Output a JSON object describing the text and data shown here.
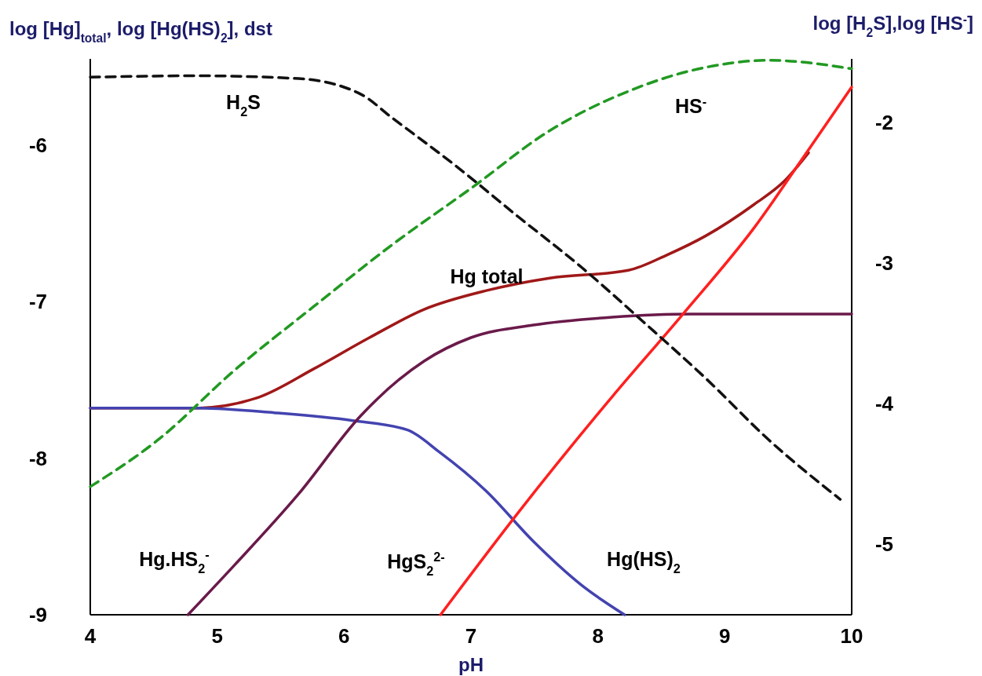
{
  "chart_data": {
    "type": "line",
    "xlabel": "pH",
    "ylabel": "log [Hg]$_{total}$, log [Hg(HS)$_{2}$], dst",
    "y2label": "log [H$_{2}$S],log [HS$^{-}$]",
    "xlim": [
      4,
      10
    ],
    "xticks": [
      4,
      5,
      6,
      7,
      8,
      9,
      10
    ],
    "ylim": [
      -9,
      -5.45
    ],
    "yticks": [
      -6,
      -7,
      -8,
      -9
    ],
    "y2lim": [
      -5.5,
      -1.55
    ],
    "y2ticks": [
      -2,
      -3,
      -4,
      -5
    ],
    "grid": false,
    "series": [
      {
        "name": "Hg total",
        "color": "#a01818",
        "x": [
          4,
          4.83,
          5.33,
          5.76,
          6.2,
          6.63,
          7.12,
          7.62,
          8.24,
          8.55,
          8.85,
          9.23,
          9.47,
          9.66
        ],
        "values": [
          -7.68,
          -7.68,
          -7.61,
          -7.43,
          -7.23,
          -7.05,
          -6.93,
          -6.85,
          -6.8,
          -6.7,
          -6.58,
          -6.38,
          -6.23,
          -6.05
        ]
      },
      {
        "name": "Hg(HS)$_{2}$",
        "color": "#4343b0",
        "x": [
          4,
          4.83,
          5.45,
          6.07,
          6.5,
          6.75,
          7.12,
          7.49,
          7.87,
          8.21
        ],
        "values": [
          -7.68,
          -7.68,
          -7.71,
          -7.76,
          -7.82,
          -7.96,
          -8.21,
          -8.53,
          -8.81,
          -9
        ]
      },
      {
        "name": "Hg.HS$_{2}$$^{-}$",
        "color": "#6a1a4a",
        "x": [
          4.77,
          5.14,
          5.64,
          6.13,
          6.63,
          7.0,
          7.49,
          8.11,
          8.73,
          10
        ],
        "values": [
          -9,
          -8.68,
          -8.23,
          -7.73,
          -7.38,
          -7.23,
          -7.15,
          -7.1,
          -7.08,
          -7.08
        ]
      },
      {
        "name": "HgS$_{2}$$^{2-}$",
        "color": "#ff2020",
        "x": [
          6.76,
          7.37,
          8.11,
          8.67,
          9.23,
          9.66,
          10
        ],
        "values": [
          -9,
          -8.35,
          -7.61,
          -7.08,
          -6.53,
          -6.03,
          -5.63
        ]
      },
      {
        "name": "H$_{2}$S",
        "color": "#111111",
        "axis": "y2",
        "line_style": "dashed",
        "x": [
          4,
          4.83,
          5.64,
          6.13,
          6.38,
          6.88,
          7.37,
          7.87,
          8.36,
          8.85,
          9.35,
          9.91
        ],
        "values": [
          -1.68,
          -1.67,
          -1.69,
          -1.8,
          -1.97,
          -2.31,
          -2.67,
          -3.03,
          -3.42,
          -3.82,
          -4.26,
          -4.68
        ]
      },
      {
        "name": "HS$^{-}$",
        "color": "#229922",
        "axis": "y2",
        "line_style": "dashed",
        "x": [
          4,
          4.53,
          5.14,
          5.76,
          6.38,
          7.0,
          7.62,
          8.24,
          8.85,
          9.35,
          10
        ],
        "values": [
          -4.59,
          -4.26,
          -3.76,
          -3.31,
          -2.87,
          -2.47,
          -2.06,
          -1.78,
          -1.61,
          -1.56,
          -1.62
        ]
      }
    ]
  }
}
